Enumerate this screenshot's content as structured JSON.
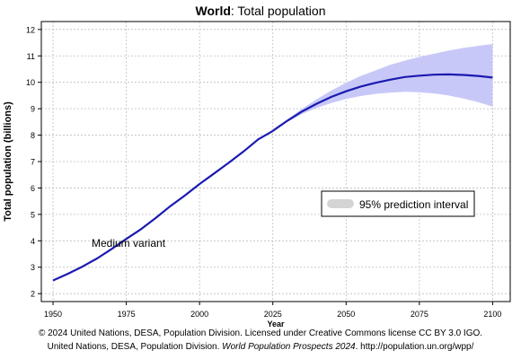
{
  "chart_data": {
    "type": "line",
    "title_bold": "World",
    "title_rest": ": Total population",
    "xlabel": "Year",
    "ylabel": "Total population (billions)",
    "xlim": [
      1946,
      2106
    ],
    "ylim": [
      1.7,
      12.3
    ],
    "x_ticks": [
      1950,
      1975,
      2000,
      2025,
      2050,
      2075,
      2100
    ],
    "y_ticks": [
      2,
      3,
      4,
      5,
      6,
      7,
      8,
      9,
      10,
      11,
      12
    ],
    "grid": true,
    "legend": {
      "position": "right-middle",
      "label": "95% prediction interval"
    },
    "annotation": "Medium variant",
    "series": [
      {
        "x": [
          1950,
          1955,
          1960,
          1965,
          1970,
          1975,
          1980,
          1985,
          1990,
          1995,
          2000,
          2005,
          2010,
          2015,
          2020,
          2025,
          2030,
          2035,
          2040,
          2045,
          2050,
          2055,
          2060,
          2065,
          2070,
          2075,
          2080,
          2085,
          2090,
          2095,
          2100
        ],
        "values": [
          2.5,
          2.75,
          3.02,
          3.33,
          3.69,
          4.07,
          4.44,
          4.86,
          5.31,
          5.72,
          6.15,
          6.55,
          6.96,
          7.38,
          7.84,
          8.16,
          8.55,
          8.9,
          9.19,
          9.45,
          9.66,
          9.84,
          9.98,
          10.1,
          10.2,
          10.25,
          10.29,
          10.3,
          10.28,
          10.24,
          10.18
        ]
      }
    ],
    "interval": {
      "x": [
        2024,
        2030,
        2035,
        2040,
        2045,
        2050,
        2055,
        2060,
        2065,
        2070,
        2075,
        2080,
        2085,
        2090,
        2095,
        2100
      ],
      "lower": [
        8.16,
        8.5,
        8.8,
        9.03,
        9.22,
        9.37,
        9.48,
        9.56,
        9.61,
        9.64,
        9.62,
        9.58,
        9.5,
        9.39,
        9.25,
        9.08
      ],
      "upper": [
        8.16,
        8.6,
        9.0,
        9.36,
        9.69,
        9.98,
        10.24,
        10.45,
        10.66,
        10.82,
        10.96,
        11.08,
        11.2,
        11.3,
        11.38,
        11.45
      ]
    },
    "colors": {
      "line": "#1a1ab0",
      "band": "#c8c8f8",
      "legend_swatch": "#d4d4d4",
      "grid": "#bdbdbd"
    }
  },
  "footer": {
    "line1": "© 2024 United Nations, DESA, Population Division. Licensed under Creative Commons license CC BY 3.0 IGO.",
    "line2_pre": "United Nations, DESA, Population Division.",
    "line2_italic": "World Population Prospects 2024",
    "line2_post": ". http://population.un.org/wpp/"
  }
}
